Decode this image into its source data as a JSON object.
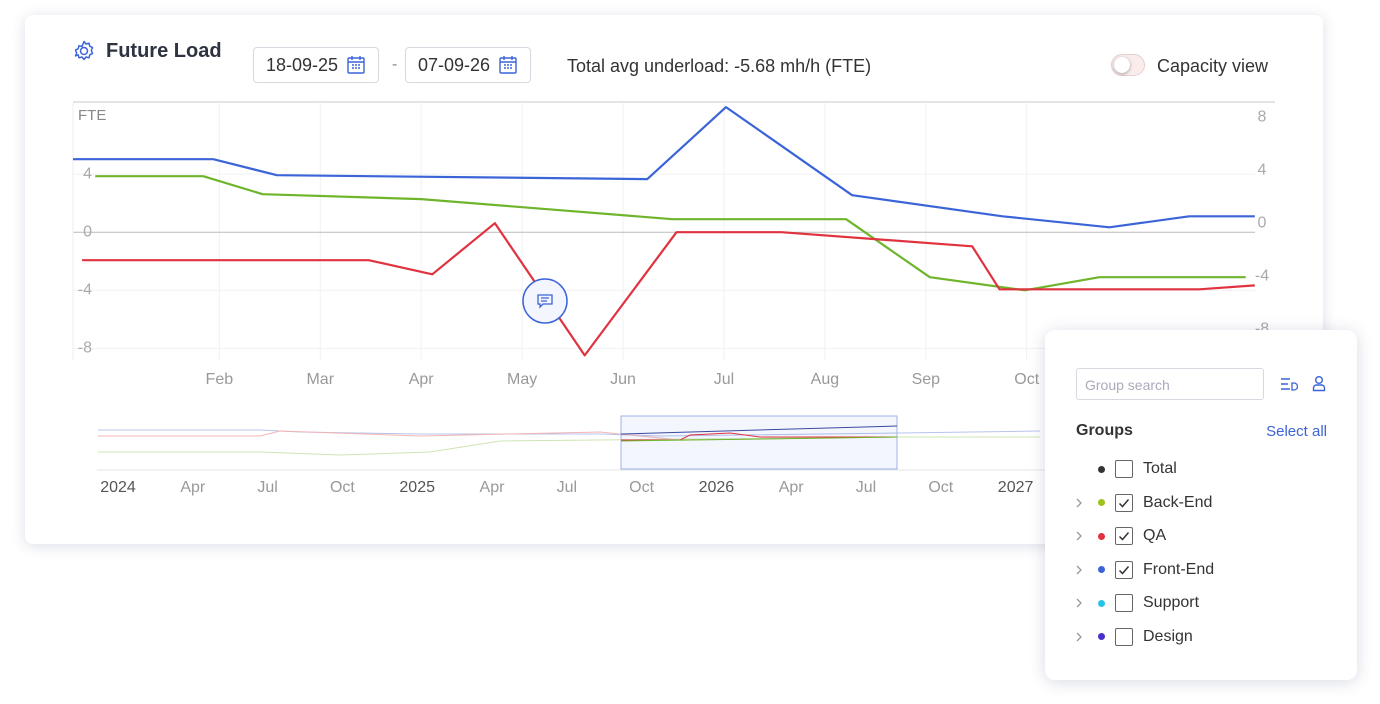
{
  "header": {
    "title": "Future Load",
    "date_from": "18-09-25",
    "date_separator": "-",
    "date_to": "07-09-26",
    "summary": "Total avg underload: -5.68 mh/h (FTE)",
    "toggle_label": "Capacity view"
  },
  "chart_data": {
    "type": "line",
    "y_label": "FTE",
    "xlim": [
      0.55,
      12.46
    ],
    "xticks": [
      {
        "value": 2,
        "label": "Feb"
      },
      {
        "value": 3,
        "label": "Mar"
      },
      {
        "value": 4,
        "label": "Apr"
      },
      {
        "value": 5,
        "label": "May"
      },
      {
        "value": 6,
        "label": "Jun"
      },
      {
        "value": 7,
        "label": "Jul"
      },
      {
        "value": 8,
        "label": "Aug"
      },
      {
        "value": 9,
        "label": "Sep"
      },
      {
        "value": 10,
        "label": "Oct"
      }
    ],
    "ylim": [
      -8.8,
      8.9
    ],
    "yticks": [
      4,
      0,
      -4,
      -8
    ],
    "y2lim": [
      -10.3,
      9.06
    ],
    "y2ticks": [
      8,
      4,
      0,
      -4,
      -8
    ],
    "grid": true,
    "series": [
      {
        "color": "#3b64d8",
        "x": [
          0.55,
          1.94,
          2.57,
          6.24,
          7.02,
          8.27,
          9.76,
          10.82,
          11.61,
          12.26
        ],
        "values": [
          5.03,
          5.03,
          3.93,
          3.66,
          8.62,
          2.55,
          1.1,
          0.34,
          1.1,
          1.1
        ]
      },
      {
        "color": "#6fb52c",
        "x": [
          0.77,
          1.84,
          2.43,
          4.0,
          6.49,
          8.21,
          9.04,
          9.98,
          10.72,
          12.17
        ],
        "values": [
          3.86,
          3.86,
          2.62,
          2.28,
          0.9,
          0.9,
          -3.1,
          -4.0,
          -3.1,
          -3.1
        ]
      },
      {
        "color": "#e0323f",
        "x": [
          0.64,
          3.48,
          4.11,
          4.73,
          5.62,
          6.53,
          7.57,
          9.46,
          9.73,
          11.71,
          12.26
        ],
        "values": [
          -1.93,
          -1.93,
          -2.9,
          0.62,
          -8.48,
          0,
          0,
          -0.97,
          -3.93,
          -3.93,
          -3.66
        ]
      }
    ]
  },
  "navigator": {
    "labels": [
      "2024",
      "Apr",
      "Jul",
      "Oct",
      "2025",
      "Apr",
      "Jul",
      "Oct",
      "2026",
      "Apr",
      "Jul",
      "Oct",
      "2027"
    ]
  },
  "groups_panel": {
    "search_placeholder": "Group search",
    "title": "Groups",
    "select_all": "Select all",
    "items": [
      {
        "name": "Total",
        "color": "#333333",
        "checked": false,
        "expandable": false
      },
      {
        "name": "Back-End",
        "color": "#9bc31c",
        "checked": true,
        "expandable": true
      },
      {
        "name": "QA",
        "color": "#e0323f",
        "checked": true,
        "expandable": true
      },
      {
        "name": "Front-End",
        "color": "#3b64d8",
        "checked": true,
        "expandable": true
      },
      {
        "name": "Support",
        "color": "#29c3e8",
        "checked": false,
        "expandable": true
      },
      {
        "name": "Design",
        "color": "#4b2fc9",
        "checked": false,
        "expandable": true
      }
    ]
  }
}
